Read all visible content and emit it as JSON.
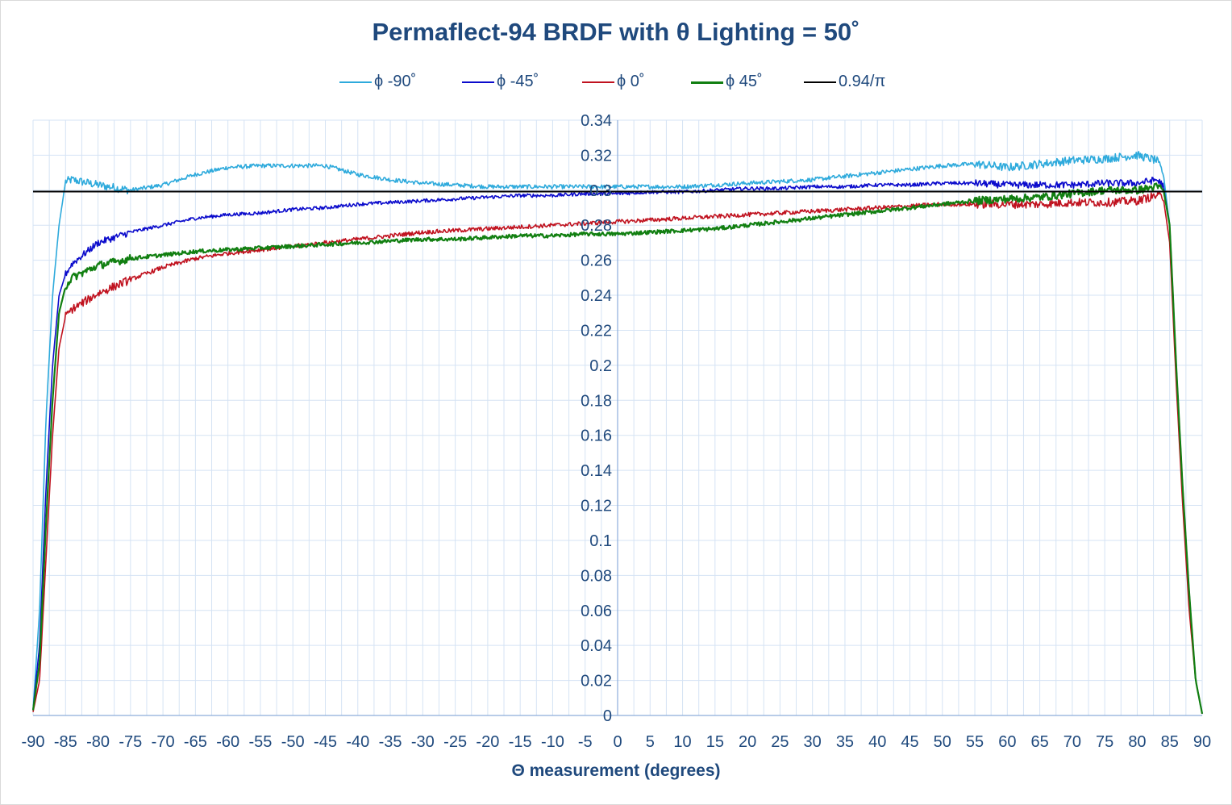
{
  "chart_data": {
    "type": "line",
    "title": "Permaflect-94 BRDF with θ Lighting = 50˚",
    "xlabel": "Θ measurement (degrees)",
    "ylabel": "",
    "xlim": [
      -90,
      90
    ],
    "ylim": [
      0,
      0.34
    ],
    "x_ticks": [
      -90,
      -85,
      -80,
      -75,
      -70,
      -65,
      -60,
      -55,
      -50,
      -45,
      -40,
      -35,
      -30,
      -25,
      -20,
      -15,
      -10,
      -5,
      0,
      5,
      10,
      15,
      20,
      25,
      30,
      35,
      40,
      45,
      50,
      55,
      60,
      65,
      70,
      75,
      80,
      85,
      90
    ],
    "y_ticks": [
      0,
      0.02,
      0.04,
      0.06,
      0.08,
      0.1,
      0.12,
      0.14,
      0.16,
      0.18,
      0.2,
      0.22,
      0.24,
      0.26,
      0.28,
      0.3,
      0.32,
      0.34
    ],
    "x_tick_labels": [
      "-90",
      "-85",
      "-80",
      "-75",
      "-70",
      "-65",
      "-60",
      "-55",
      "-50",
      "-45",
      "-40",
      "-35",
      "-30",
      "-25",
      "-20",
      "-15",
      "-10",
      "-5",
      "0",
      "5",
      "10",
      "15",
      "20",
      "25",
      "30",
      "35",
      "40",
      "45",
      "50",
      "55",
      "60",
      "65",
      "70",
      "75",
      "80",
      "85",
      "90"
    ],
    "y_tick_labels": [
      "0",
      "0.02",
      "0.04",
      "0.06",
      "0.08",
      "0.1",
      "0.12",
      "0.14",
      "0.16",
      "0.18",
      "0.2",
      "0.22",
      "0.24",
      "0.26",
      "0.28",
      "0.3",
      "0.32",
      "0.34"
    ],
    "grid": true,
    "legend_position": "top",
    "series": [
      {
        "name": "ϕ -90˚",
        "color": "#2eaadc",
        "x": [
          -90,
          -89,
          -88,
          -87,
          -86,
          -85,
          -84,
          -80,
          -75,
          -70,
          -65,
          -60,
          -55,
          -50,
          -45,
          -40,
          -35,
          -30,
          -25,
          -20,
          -15,
          -10,
          -5,
          0,
          5,
          10,
          15,
          20,
          25,
          30,
          35,
          40,
          45,
          50,
          55,
          60,
          65,
          70,
          75,
          80,
          83,
          84,
          85,
          86,
          87,
          88,
          89,
          90
        ],
        "y": [
          0.003,
          0.06,
          0.17,
          0.24,
          0.28,
          0.305,
          0.306,
          0.303,
          0.3,
          0.303,
          0.309,
          0.313,
          0.314,
          0.314,
          0.314,
          0.309,
          0.306,
          0.304,
          0.303,
          0.302,
          0.302,
          0.302,
          0.302,
          0.302,
          0.302,
          0.302,
          0.303,
          0.304,
          0.305,
          0.306,
          0.308,
          0.31,
          0.312,
          0.314,
          0.315,
          0.313,
          0.315,
          0.317,
          0.318,
          0.32,
          0.317,
          0.31,
          0.28,
          0.2,
          0.13,
          0.07,
          0.02,
          0.001
        ]
      },
      {
        "name": "ϕ -45˚",
        "color": "#0b0bcc",
        "x": [
          -90,
          -89,
          -88,
          -87,
          -86,
          -85,
          -84,
          -80,
          -75,
          -70,
          -65,
          -60,
          -55,
          -50,
          -45,
          -40,
          -35,
          -30,
          -25,
          -20,
          -15,
          -10,
          -5,
          0,
          5,
          10,
          15,
          20,
          25,
          30,
          35,
          40,
          45,
          50,
          55,
          60,
          65,
          70,
          75,
          80,
          83,
          84,
          85,
          86,
          87,
          88,
          89,
          90
        ],
        "y": [
          0.003,
          0.04,
          0.13,
          0.2,
          0.24,
          0.252,
          0.258,
          0.27,
          0.276,
          0.28,
          0.284,
          0.286,
          0.287,
          0.289,
          0.29,
          0.292,
          0.293,
          0.294,
          0.295,
          0.296,
          0.297,
          0.297,
          0.298,
          0.298,
          0.299,
          0.299,
          0.3,
          0.301,
          0.301,
          0.302,
          0.302,
          0.303,
          0.303,
          0.304,
          0.304,
          0.303,
          0.303,
          0.303,
          0.304,
          0.304,
          0.306,
          0.303,
          0.28,
          0.2,
          0.13,
          0.07,
          0.02,
          0.001
        ]
      },
      {
        "name": "ϕ 0˚",
        "color": "#c0121f",
        "x": [
          -90,
          -89,
          -88,
          -87,
          -86,
          -85,
          -84,
          -80,
          -75,
          -70,
          -65,
          -60,
          -55,
          -50,
          -45,
          -40,
          -35,
          -30,
          -25,
          -20,
          -15,
          -10,
          -5,
          0,
          5,
          10,
          15,
          20,
          25,
          30,
          35,
          40,
          45,
          50,
          55,
          60,
          65,
          70,
          75,
          80,
          83,
          84,
          85,
          86,
          87,
          88,
          89,
          90
        ],
        "y": [
          0.002,
          0.02,
          0.09,
          0.16,
          0.21,
          0.228,
          0.232,
          0.241,
          0.249,
          0.256,
          0.261,
          0.264,
          0.266,
          0.268,
          0.27,
          0.272,
          0.274,
          0.276,
          0.277,
          0.278,
          0.279,
          0.28,
          0.281,
          0.282,
          0.283,
          0.284,
          0.285,
          0.286,
          0.287,
          0.288,
          0.289,
          0.29,
          0.291,
          0.292,
          0.292,
          0.292,
          0.292,
          0.293,
          0.293,
          0.294,
          0.297,
          0.296,
          0.27,
          0.19,
          0.12,
          0.06,
          0.02,
          0.001
        ]
      },
      {
        "name": "ϕ 45˚",
        "color": "#117f11",
        "x": [
          -90,
          -89,
          -88,
          -87,
          -86,
          -85,
          -84,
          -80,
          -75,
          -70,
          -65,
          -60,
          -55,
          -50,
          -45,
          -40,
          -35,
          -30,
          -25,
          -20,
          -15,
          -10,
          -5,
          0,
          5,
          10,
          15,
          20,
          25,
          30,
          35,
          40,
          45,
          50,
          55,
          60,
          65,
          70,
          75,
          80,
          83,
          84,
          85,
          86,
          87,
          88,
          89,
          90
        ],
        "y": [
          0.003,
          0.03,
          0.11,
          0.18,
          0.23,
          0.245,
          0.25,
          0.257,
          0.261,
          0.263,
          0.265,
          0.266,
          0.267,
          0.268,
          0.269,
          0.27,
          0.271,
          0.272,
          0.272,
          0.273,
          0.274,
          0.274,
          0.275,
          0.275,
          0.276,
          0.277,
          0.278,
          0.28,
          0.282,
          0.284,
          0.286,
          0.288,
          0.29,
          0.292,
          0.294,
          0.295,
          0.296,
          0.298,
          0.3,
          0.3,
          0.302,
          0.301,
          0.28,
          0.2,
          0.13,
          0.07,
          0.02,
          0.001
        ]
      },
      {
        "name": "0.94/π",
        "color": "#000000",
        "x": [
          -90,
          90
        ],
        "y": [
          0.29921,
          0.29921
        ]
      }
    ]
  }
}
